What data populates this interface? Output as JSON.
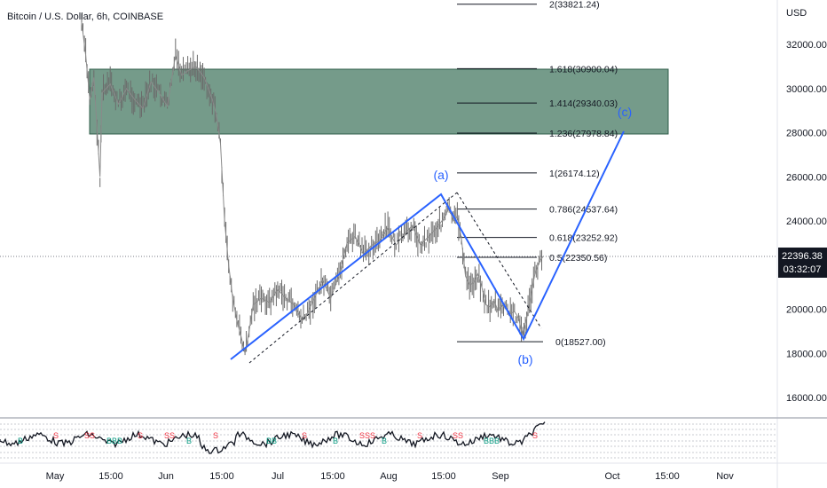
{
  "title": "Bitcoin / U.S. Dollar, 6h, COINBASE",
  "currency": "USD",
  "chart_data": {
    "type": "line",
    "y_ticks": [
      "32000.00",
      "30000.00",
      "28000.00",
      "26000.00",
      "24000.00",
      "22000.00",
      "20000.00",
      "18000.00",
      "16000.00"
    ],
    "x_ticks": [
      "May",
      "15:00",
      "Jun",
      "15:00",
      "Jul",
      "15:00",
      "Aug",
      "15:00",
      "Sep",
      "Oct",
      "15:00",
      "Nov"
    ],
    "current_price": "22396.38",
    "countdown": "03:32:07",
    "zone": {
      "low": 28000,
      "high": 30900,
      "color": "#5d8a75"
    },
    "fib_levels": [
      {
        "label": "2(33821.24)",
        "value": 33821.24
      },
      {
        "label": "1.618(30900.04)",
        "value": 30900.04
      },
      {
        "label": "1.414(29340.03)",
        "value": 29340.03
      },
      {
        "label": "1.236(27978.84)",
        "value": 27978.84
      },
      {
        "label": "1(26174.12)",
        "value": 26174.12
      },
      {
        "label": "0.786(24537.64)",
        "value": 24537.64
      },
      {
        "label": "0.618(23252.92)",
        "value": 23252.92
      },
      {
        "label": "0.5(22350.56)",
        "value": 22350.56
      },
      {
        "label": "0(18527.00)",
        "value": 18527.0
      }
    ],
    "waves": [
      {
        "label": "(a)",
        "value": 25200
      },
      {
        "label": "(b)",
        "value": 18600
      },
      {
        "label": "(c)",
        "value": 28000
      }
    ],
    "price_path": [
      [
        0.0,
        33000
      ],
      [
        0.01,
        31500
      ],
      [
        0.02,
        29500
      ],
      [
        0.03,
        30500
      ],
      [
        0.045,
        26000
      ],
      [
        0.05,
        29800
      ],
      [
        0.07,
        30200
      ],
      [
        0.09,
        29300
      ],
      [
        0.11,
        30000
      ],
      [
        0.13,
        29500
      ],
      [
        0.15,
        29100
      ],
      [
        0.17,
        30300
      ],
      [
        0.19,
        29800
      ],
      [
        0.21,
        29200
      ],
      [
        0.23,
        31500
      ],
      [
        0.245,
        30600
      ],
      [
        0.26,
        30800
      ],
      [
        0.28,
        31000
      ],
      [
        0.3,
        30500
      ],
      [
        0.32,
        29500
      ],
      [
        0.33,
        28800
      ],
      [
        0.34,
        27500
      ],
      [
        0.35,
        24000
      ],
      [
        0.36,
        22000
      ],
      [
        0.37,
        20500
      ],
      [
        0.38,
        19500
      ],
      [
        0.39,
        18800
      ],
      [
        0.4,
        18000
      ],
      [
        0.41,
        19000
      ],
      [
        0.42,
        20200
      ],
      [
        0.44,
        20500
      ],
      [
        0.46,
        20300
      ],
      [
        0.48,
        20900
      ],
      [
        0.5,
        20500
      ],
      [
        0.52,
        20200
      ],
      [
        0.54,
        19500
      ],
      [
        0.55,
        19700
      ],
      [
        0.57,
        20500
      ],
      [
        0.59,
        21300
      ],
      [
        0.61,
        20500
      ],
      [
        0.63,
        21500
      ],
      [
        0.65,
        23000
      ],
      [
        0.67,
        23300
      ],
      [
        0.69,
        22500
      ],
      [
        0.71,
        22900
      ],
      [
        0.73,
        23100
      ],
      [
        0.75,
        23700
      ],
      [
        0.77,
        22900
      ],
      [
        0.79,
        23400
      ],
      [
        0.81,
        23800
      ],
      [
        0.83,
        22900
      ],
      [
        0.85,
        23300
      ],
      [
        0.87,
        23700
      ],
      [
        0.89,
        24200
      ],
      [
        0.9,
        24600
      ],
      [
        0.91,
        24000
      ],
      [
        0.92,
        24200
      ],
      [
        0.93,
        23200
      ],
      [
        0.94,
        21500
      ],
      [
        0.95,
        21100
      ],
      [
        0.96,
        21200
      ],
      [
        0.97,
        21600
      ],
      [
        0.98,
        21000
      ],
      [
        0.99,
        20200
      ],
      [
        1.0,
        20100
      ],
      [
        1.01,
        20400
      ],
      [
        1.02,
        19900
      ],
      [
        1.03,
        20200
      ],
      [
        1.04,
        20000
      ],
      [
        1.05,
        19800
      ],
      [
        1.06,
        19900
      ],
      [
        1.07,
        19600
      ],
      [
        1.08,
        18800
      ],
      [
        1.09,
        19600
      ],
      [
        1.1,
        20600
      ],
      [
        1.11,
        21600
      ],
      [
        1.12,
        22100
      ],
      [
        1.13,
        22396
      ]
    ],
    "grid": false,
    "legend": "none"
  },
  "oscillator": {
    "signals": [
      "B",
      "S",
      "SS",
      "BBB",
      "S",
      "SS",
      "B",
      "S",
      "BB",
      "S",
      "B",
      "SSS"
    ]
  }
}
